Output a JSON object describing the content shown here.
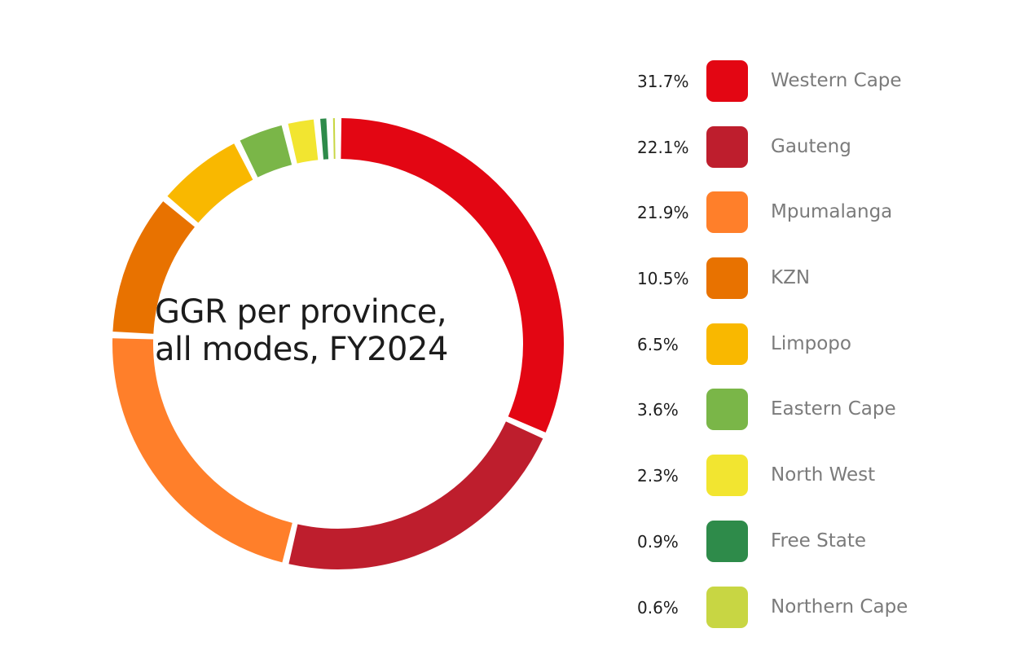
{
  "chart_data": {
    "type": "pie",
    "title": "GGR per province, all modes, FY2024",
    "title_lines": [
      "GGR per province,",
      "all modes, FY2024"
    ],
    "unit": "%",
    "legend_position": "right",
    "slices": [
      {
        "label": "Western Cape",
        "value": 31.7,
        "display": "31.7%",
        "color": "#e30613"
      },
      {
        "label": "Gauteng",
        "value": 22.1,
        "display": "22.1%",
        "color": "#be1e2d"
      },
      {
        "label": "Mpumalanga",
        "value": 21.9,
        "display": "21.9%",
        "color": "#ff7f2a"
      },
      {
        "label": "KZN",
        "value": 10.5,
        "display": "10.5%",
        "color": "#e87200"
      },
      {
        "label": "Limpopo",
        "value": 6.5,
        "display": "6.5%",
        "color": "#f9b800"
      },
      {
        "label": "Eastern Cape",
        "value": 3.6,
        "display": "3.6%",
        "color": "#7ab648"
      },
      {
        "label": "North West",
        "value": 2.3,
        "display": "2.3%",
        "color": "#f2e530"
      },
      {
        "label": "Free State",
        "value": 0.9,
        "display": "0.9%",
        "color": "#2e8b4a"
      },
      {
        "label": "Northern Cape",
        "value": 0.6,
        "display": "0.6%",
        "color": "#c8d643"
      }
    ]
  }
}
